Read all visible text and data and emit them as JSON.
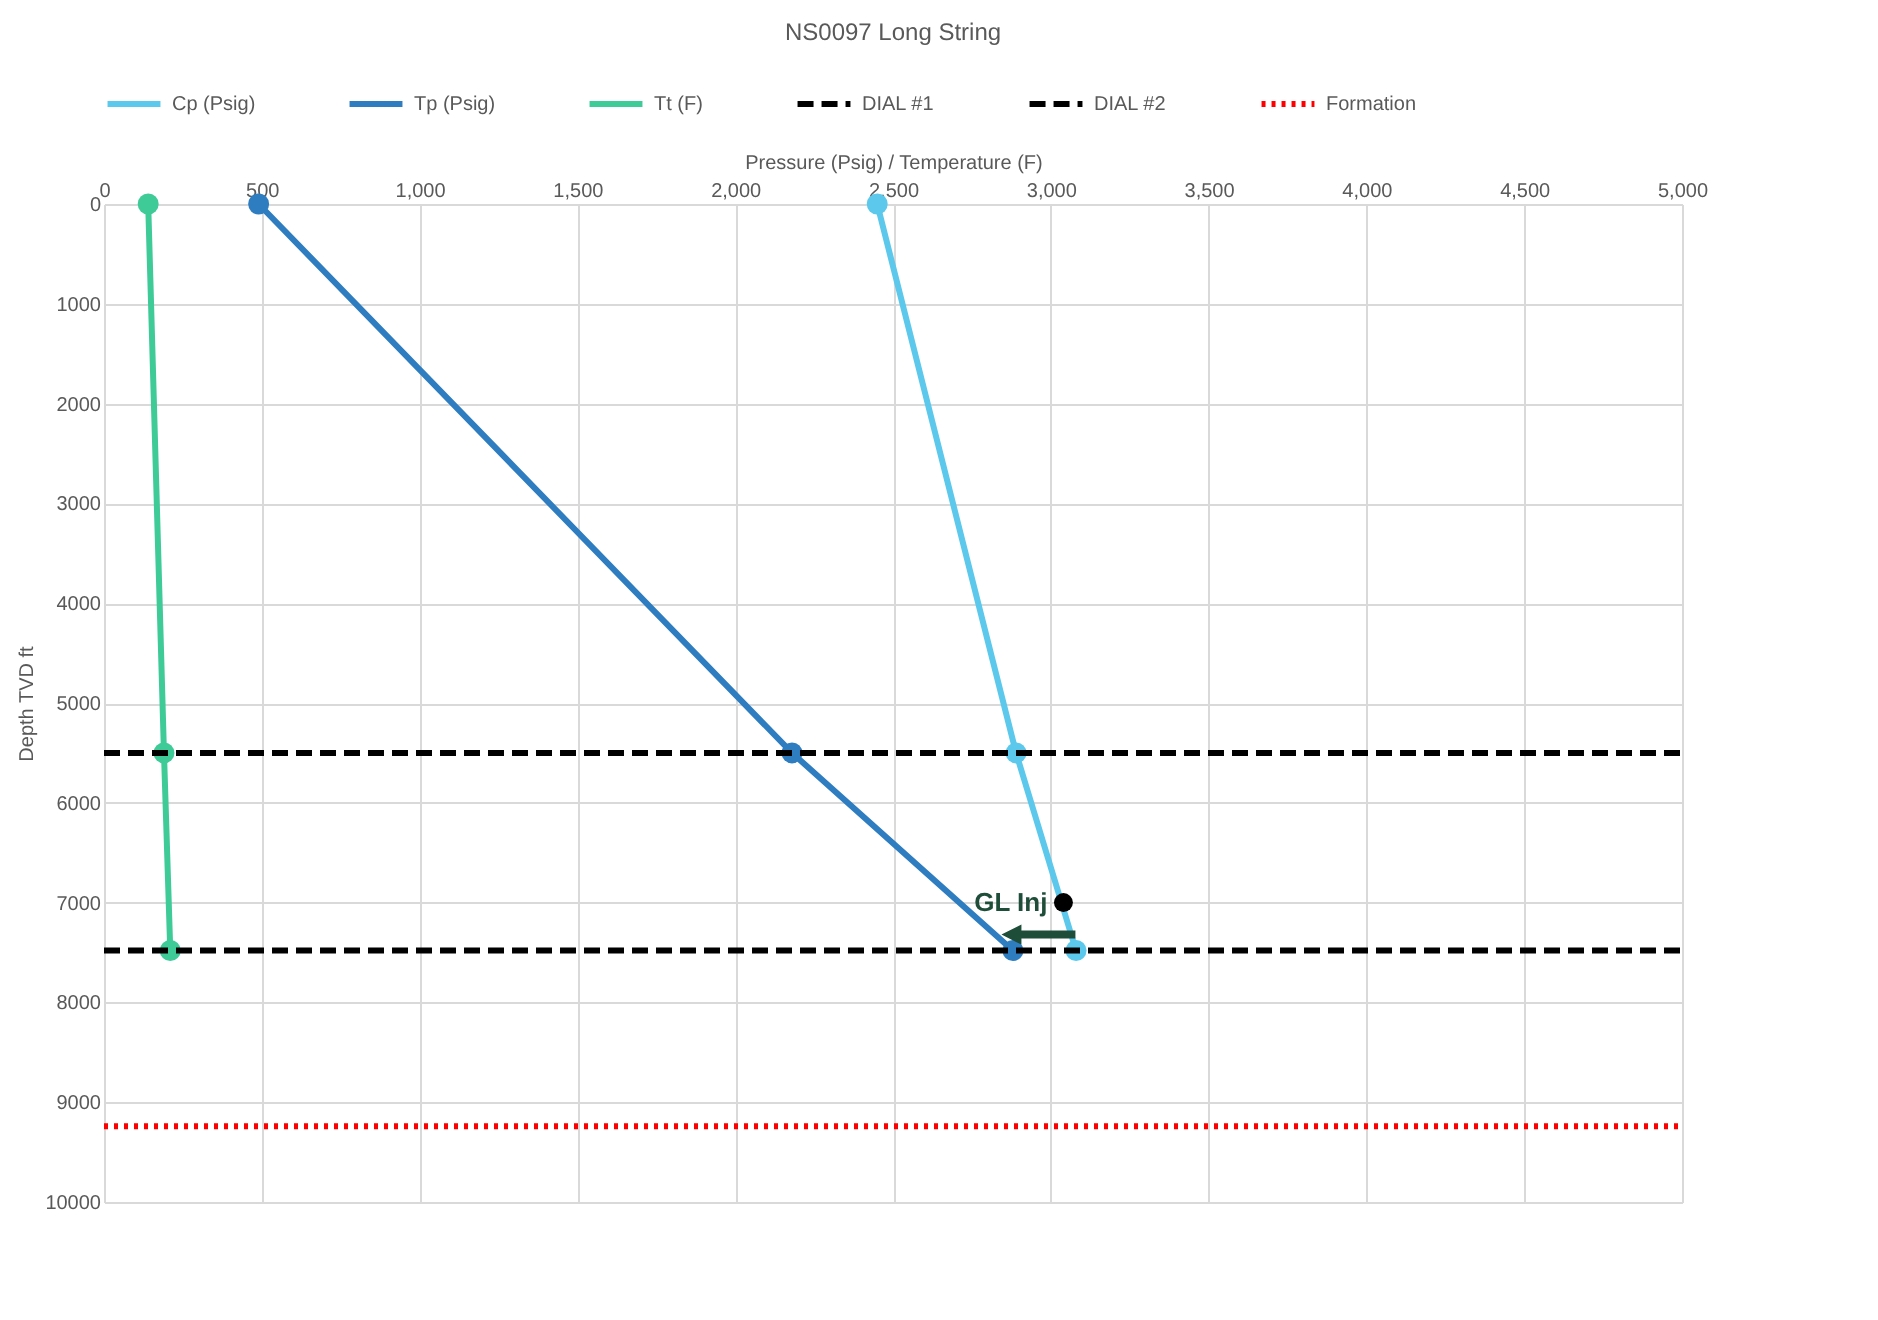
{
  "chart_data": {
    "type": "line",
    "title": "NS0097 Long String",
    "xlabel": "Pressure (Psig) / Temperature (F)",
    "ylabel": "Depth TVD ft",
    "xlim": [
      0,
      5000
    ],
    "xticks": [
      0,
      {
        "value": 500,
        "label": "500"
      },
      {
        "value": 1000,
        "label": "1,000"
      },
      {
        "value": 1500,
        "label": "1,500"
      },
      {
        "value": 2000,
        "label": "2,000"
      },
      {
        "value": 2500,
        "label": "2,500"
      },
      {
        "value": 3000,
        "label": "3,000"
      },
      {
        "value": 3500,
        "label": "3,500"
      },
      {
        "value": 4000,
        "label": "4,000"
      },
      {
        "value": 4500,
        "label": "4,500"
      },
      {
        "value": 5000,
        "label": "5,000"
      }
    ],
    "ylim": [
      10000,
      0
    ],
    "yticks": [
      0,
      1000,
      2000,
      3000,
      4000,
      5000,
      6000,
      7000,
      8000,
      9000,
      10000
    ],
    "grid": true,
    "legend": "top",
    "marker": "circle",
    "series": [
      {
        "name": "Cp (Psig)",
        "color": "#5bc8ec",
        "x": [
          2450,
          2890,
          3080
        ],
        "values": [
          0,
          5500,
          7480
        ]
      },
      {
        "name": "Tp (Psig)",
        "color": "#2e7dc1",
        "x": [
          490,
          2180,
          2880
        ],
        "values": [
          0,
          5500,
          7480
        ]
      },
      {
        "name": "Tt (F)",
        "color": "#3ecb98",
        "x": [
          140,
          190,
          210
        ],
        "values": [
          0,
          5500,
          7480
        ]
      },
      {
        "name": "DIAL #1",
        "color": "#000000",
        "x": [
          0,
          5000
        ],
        "values": [
          5500,
          5500
        ],
        "line_style": "dashed",
        "marker": "none"
      },
      {
        "name": "DIAL #2",
        "color": "#000000",
        "x": [
          0,
          5000
        ],
        "values": [
          7480,
          7480
        ],
        "line_style": "dashed",
        "marker": "none"
      },
      {
        "name": "Formation",
        "color": "#ff0000",
        "x": [
          0,
          5000
        ],
        "values": [
          9240,
          9240
        ],
        "line_style": "dotted",
        "marker": "none"
      },
      {
        "type": "scatter",
        "color": "#000000",
        "x": [
          3040
        ],
        "values": [
          7000
        ]
      }
    ],
    "annotations": [
      {
        "text": "GL Inj",
        "x": 3040,
        "y": 7000
      }
    ]
  }
}
